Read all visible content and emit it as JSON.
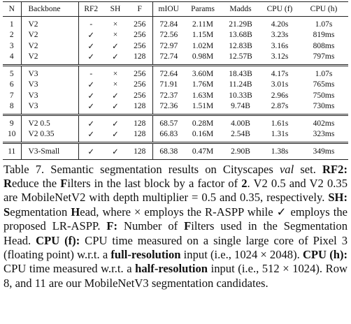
{
  "table": {
    "header": [
      "N",
      "Backbone",
      "RF2",
      "SH",
      "F",
      "mIOU",
      "Params",
      "Madds",
      "CPU (f)",
      "CPU (h)"
    ],
    "groups": [
      [
        [
          "1",
          "V2",
          "-",
          "×",
          "256",
          "72.84",
          "2.11M",
          "21.29B",
          "4.20s",
          "1.07s"
        ],
        [
          "2",
          "V2",
          "✓",
          "×",
          "256",
          "72.56",
          "1.15M",
          "13.68B",
          "3.23s",
          "819ms"
        ],
        [
          "3",
          "V2",
          "✓",
          "✓",
          "256",
          "72.97",
          "1.02M",
          "12.83B",
          "3.16s",
          "808ms"
        ],
        [
          "4",
          "V2",
          "✓",
          "✓",
          "128",
          "72.74",
          "0.98M",
          "12.57B",
          "3.12s",
          "797ms"
        ]
      ],
      [
        [
          "5",
          "V3",
          "-",
          "×",
          "256",
          "72.64",
          "3.60M",
          "18.43B",
          "4.17s",
          "1.07s"
        ],
        [
          "6",
          "V3",
          "✓",
          "×",
          "256",
          "71.91",
          "1.76M",
          "11.24B",
          "3.01s",
          "765ms"
        ],
        [
          "7",
          "V3",
          "✓",
          "✓",
          "256",
          "72.37",
          "1.63M",
          "10.33B",
          "2.96s",
          "750ms"
        ],
        [
          "8",
          "V3",
          "✓",
          "✓",
          "128",
          "72.36",
          "1.51M",
          "9.74B",
          "2.87s",
          "730ms"
        ]
      ],
      [
        [
          "9",
          "V2 0.5",
          "✓",
          "✓",
          "128",
          "68.57",
          "0.28M",
          "4.00B",
          "1.61s",
          "402ms"
        ],
        [
          "10",
          "V2 0.35",
          "✓",
          "✓",
          "128",
          "66.83",
          "0.16M",
          "2.54B",
          "1.31s",
          "323ms"
        ]
      ],
      [
        [
          "11",
          "V3-Small",
          "✓",
          "✓",
          "128",
          "68.38",
          "0.47M",
          "2.90B",
          "1.38s",
          "349ms"
        ]
      ]
    ]
  },
  "caption": [
    "Table 7. Semantic segmentation results on Cityscapes ",
    "val",
    " set. ",
    "RF2: R",
    "educe the ",
    "F",
    "ilters in the last block by a factor of ",
    "2",
    ". V2 0.5 and V2 0.35 are MobileNetV2 with depth multiplier = 0.5 and 0.35, respectively. ",
    "SH: S",
    "egmentation ",
    "H",
    "ead, where × employs the R-ASPP while ✓ employs the proposed LR-ASPP. ",
    "F:",
    " Number of ",
    "F",
    "ilters used in the Segmentation Head. ",
    "CPU (f):",
    " CPU time measured on a single large core of Pixel 3 (floating point) w.r.t. a ",
    "full-resolution",
    " input (i.e., 1024 × 2048). ",
    "CPU (h):",
    " CPU time measured w.r.t. a ",
    "half-resolution",
    " input (i.e., 512 × 1024). Row 8, and 11 are our MobileNetV3 segmentation candidates."
  ]
}
